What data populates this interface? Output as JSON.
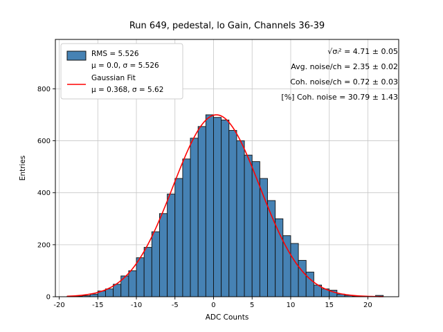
{
  "chart_data": {
    "type": "bar",
    "subtype": "histogram",
    "title": "Run 649, pedestal, lo Gain, Channels 36-39",
    "xlabel": "ADC Counts",
    "ylabel": "Entries",
    "bin_start": -19,
    "bin_width": 1,
    "values": [
      1,
      2,
      4,
      10,
      22,
      30,
      48,
      80,
      100,
      150,
      190,
      250,
      320,
      395,
      455,
      530,
      610,
      655,
      700,
      690,
      680,
      640,
      600,
      545,
      520,
      455,
      370,
      300,
      235,
      205,
      140,
      95,
      45,
      30,
      25,
      10,
      5,
      2,
      0,
      0,
      5
    ],
    "xlim": [
      -20.5,
      24.0
    ],
    "ylim": [
      0,
      990
    ],
    "xticks": [
      -20,
      -15,
      -10,
      -5,
      0,
      5,
      10,
      15,
      20
    ],
    "yticks": [
      0,
      200,
      400,
      600,
      800
    ],
    "grid": true,
    "legend_position": "upper left",
    "fit": {
      "type": "gaussian",
      "mu": 0.368,
      "sigma": 5.62,
      "amplitude": 700
    },
    "annotations": [
      "√σᵢ² = 4.71 ± 0.05",
      "Avg. noise/ch = 2.35 ± 0.02",
      "Coh. noise/ch = 0.72 ± 0.03",
      "[%] Coh. noise = 30.79 ± 1.43"
    ]
  },
  "legend": {
    "entries": [
      {
        "type": "patch",
        "lines": [
          "RMS = 5.526",
          "μ = 0.0, σ = 5.526"
        ]
      },
      {
        "type": "line",
        "lines": [
          "Gaussian Fit",
          "μ = 0.368, σ = 5.62"
        ]
      }
    ]
  },
  "style": {
    "bar_fill": "#4682b4",
    "bar_edge": "#111111",
    "fit_color": "#ff0000",
    "grid_color": "#c6c6c6",
    "frame_color": "#000000",
    "legend_border": "#cccccc",
    "legend_bg": "#ffffff"
  }
}
